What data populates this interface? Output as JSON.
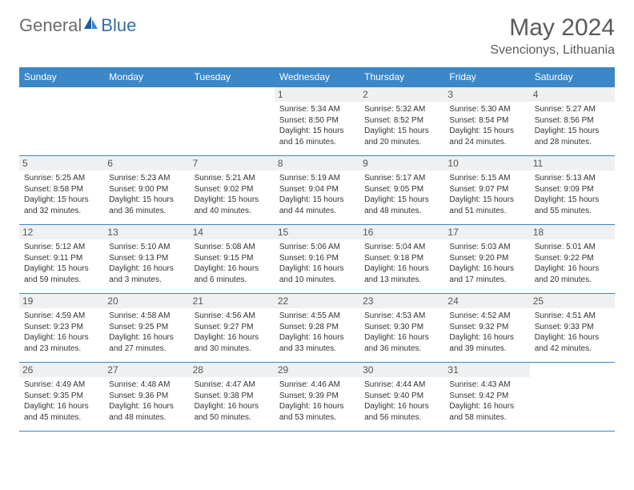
{
  "brand": {
    "general": "General",
    "blue": "Blue"
  },
  "title": "May 2024",
  "location": "Svencionys, Lithuania",
  "header_bg": "#3b87c8",
  "weekdays": [
    "Sunday",
    "Monday",
    "Tuesday",
    "Wednesday",
    "Thursday",
    "Friday",
    "Saturday"
  ],
  "weeks": [
    [
      null,
      null,
      null,
      {
        "n": "1",
        "sr": "Sunrise: 5:34 AM",
        "ss": "Sunset: 8:50 PM",
        "d1": "Daylight: 15 hours",
        "d2": "and 16 minutes."
      },
      {
        "n": "2",
        "sr": "Sunrise: 5:32 AM",
        "ss": "Sunset: 8:52 PM",
        "d1": "Daylight: 15 hours",
        "d2": "and 20 minutes."
      },
      {
        "n": "3",
        "sr": "Sunrise: 5:30 AM",
        "ss": "Sunset: 8:54 PM",
        "d1": "Daylight: 15 hours",
        "d2": "and 24 minutes."
      },
      {
        "n": "4",
        "sr": "Sunrise: 5:27 AM",
        "ss": "Sunset: 8:56 PM",
        "d1": "Daylight: 15 hours",
        "d2": "and 28 minutes."
      }
    ],
    [
      {
        "n": "5",
        "sr": "Sunrise: 5:25 AM",
        "ss": "Sunset: 8:58 PM",
        "d1": "Daylight: 15 hours",
        "d2": "and 32 minutes."
      },
      {
        "n": "6",
        "sr": "Sunrise: 5:23 AM",
        "ss": "Sunset: 9:00 PM",
        "d1": "Daylight: 15 hours",
        "d2": "and 36 minutes."
      },
      {
        "n": "7",
        "sr": "Sunrise: 5:21 AM",
        "ss": "Sunset: 9:02 PM",
        "d1": "Daylight: 15 hours",
        "d2": "and 40 minutes."
      },
      {
        "n": "8",
        "sr": "Sunrise: 5:19 AM",
        "ss": "Sunset: 9:04 PM",
        "d1": "Daylight: 15 hours",
        "d2": "and 44 minutes."
      },
      {
        "n": "9",
        "sr": "Sunrise: 5:17 AM",
        "ss": "Sunset: 9:05 PM",
        "d1": "Daylight: 15 hours",
        "d2": "and 48 minutes."
      },
      {
        "n": "10",
        "sr": "Sunrise: 5:15 AM",
        "ss": "Sunset: 9:07 PM",
        "d1": "Daylight: 15 hours",
        "d2": "and 51 minutes."
      },
      {
        "n": "11",
        "sr": "Sunrise: 5:13 AM",
        "ss": "Sunset: 9:09 PM",
        "d1": "Daylight: 15 hours",
        "d2": "and 55 minutes."
      }
    ],
    [
      {
        "n": "12",
        "sr": "Sunrise: 5:12 AM",
        "ss": "Sunset: 9:11 PM",
        "d1": "Daylight: 15 hours",
        "d2": "and 59 minutes."
      },
      {
        "n": "13",
        "sr": "Sunrise: 5:10 AM",
        "ss": "Sunset: 9:13 PM",
        "d1": "Daylight: 16 hours",
        "d2": "and 3 minutes."
      },
      {
        "n": "14",
        "sr": "Sunrise: 5:08 AM",
        "ss": "Sunset: 9:15 PM",
        "d1": "Daylight: 16 hours",
        "d2": "and 6 minutes."
      },
      {
        "n": "15",
        "sr": "Sunrise: 5:06 AM",
        "ss": "Sunset: 9:16 PM",
        "d1": "Daylight: 16 hours",
        "d2": "and 10 minutes."
      },
      {
        "n": "16",
        "sr": "Sunrise: 5:04 AM",
        "ss": "Sunset: 9:18 PM",
        "d1": "Daylight: 16 hours",
        "d2": "and 13 minutes."
      },
      {
        "n": "17",
        "sr": "Sunrise: 5:03 AM",
        "ss": "Sunset: 9:20 PM",
        "d1": "Daylight: 16 hours",
        "d2": "and 17 minutes."
      },
      {
        "n": "18",
        "sr": "Sunrise: 5:01 AM",
        "ss": "Sunset: 9:22 PM",
        "d1": "Daylight: 16 hours",
        "d2": "and 20 minutes."
      }
    ],
    [
      {
        "n": "19",
        "sr": "Sunrise: 4:59 AM",
        "ss": "Sunset: 9:23 PM",
        "d1": "Daylight: 16 hours",
        "d2": "and 23 minutes."
      },
      {
        "n": "20",
        "sr": "Sunrise: 4:58 AM",
        "ss": "Sunset: 9:25 PM",
        "d1": "Daylight: 16 hours",
        "d2": "and 27 minutes."
      },
      {
        "n": "21",
        "sr": "Sunrise: 4:56 AM",
        "ss": "Sunset: 9:27 PM",
        "d1": "Daylight: 16 hours",
        "d2": "and 30 minutes."
      },
      {
        "n": "22",
        "sr": "Sunrise: 4:55 AM",
        "ss": "Sunset: 9:28 PM",
        "d1": "Daylight: 16 hours",
        "d2": "and 33 minutes."
      },
      {
        "n": "23",
        "sr": "Sunrise: 4:53 AM",
        "ss": "Sunset: 9:30 PM",
        "d1": "Daylight: 16 hours",
        "d2": "and 36 minutes."
      },
      {
        "n": "24",
        "sr": "Sunrise: 4:52 AM",
        "ss": "Sunset: 9:32 PM",
        "d1": "Daylight: 16 hours",
        "d2": "and 39 minutes."
      },
      {
        "n": "25",
        "sr": "Sunrise: 4:51 AM",
        "ss": "Sunset: 9:33 PM",
        "d1": "Daylight: 16 hours",
        "d2": "and 42 minutes."
      }
    ],
    [
      {
        "n": "26",
        "sr": "Sunrise: 4:49 AM",
        "ss": "Sunset: 9:35 PM",
        "d1": "Daylight: 16 hours",
        "d2": "and 45 minutes."
      },
      {
        "n": "27",
        "sr": "Sunrise: 4:48 AM",
        "ss": "Sunset: 9:36 PM",
        "d1": "Daylight: 16 hours",
        "d2": "and 48 minutes."
      },
      {
        "n": "28",
        "sr": "Sunrise: 4:47 AM",
        "ss": "Sunset: 9:38 PM",
        "d1": "Daylight: 16 hours",
        "d2": "and 50 minutes."
      },
      {
        "n": "29",
        "sr": "Sunrise: 4:46 AM",
        "ss": "Sunset: 9:39 PM",
        "d1": "Daylight: 16 hours",
        "d2": "and 53 minutes."
      },
      {
        "n": "30",
        "sr": "Sunrise: 4:44 AM",
        "ss": "Sunset: 9:40 PM",
        "d1": "Daylight: 16 hours",
        "d2": "and 56 minutes."
      },
      {
        "n": "31",
        "sr": "Sunrise: 4:43 AM",
        "ss": "Sunset: 9:42 PM",
        "d1": "Daylight: 16 hours",
        "d2": "and 58 minutes."
      },
      null
    ]
  ]
}
